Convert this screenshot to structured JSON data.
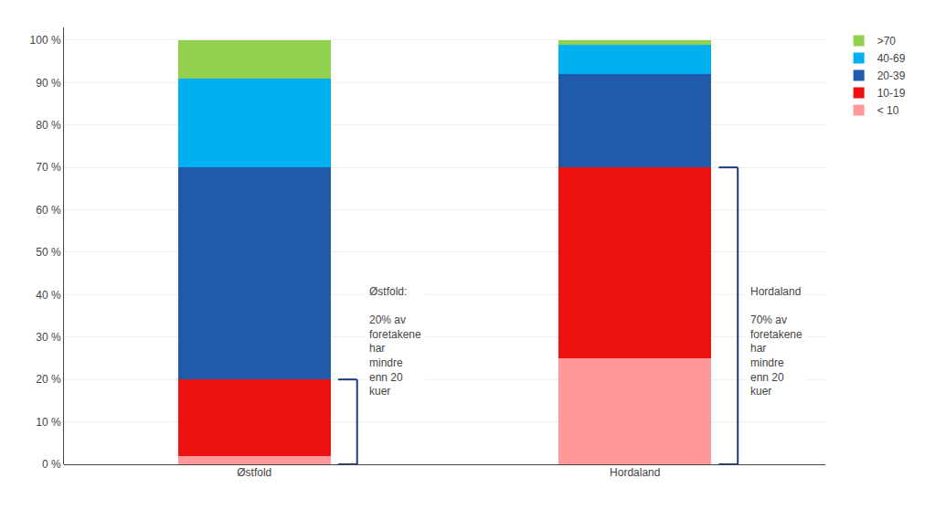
{
  "chart_data": {
    "type": "bar",
    "stacked": true,
    "grid": true,
    "categories": [
      "Østfold",
      "Hordaland"
    ],
    "series": [
      {
        "name": "< 10",
        "color": "#FF9999",
        "values": [
          2,
          25
        ]
      },
      {
        "name": "10-19",
        "color": "#EE1111",
        "values": [
          18,
          45
        ]
      },
      {
        "name": "20-39",
        "color": "#1F5BAA",
        "values": [
          50,
          22
        ]
      },
      {
        "name": "40-69",
        "color": "#00B0F0",
        "values": [
          21,
          7
        ]
      },
      {
        "name": ">70",
        "color": "#92D050",
        "values": [
          9,
          1
        ]
      }
    ],
    "ylim": [
      0,
      103
    ],
    "yticks": [
      {
        "value": 0,
        "label": "0 %"
      },
      {
        "value": 10,
        "label": "10 %"
      },
      {
        "value": 20,
        "label": "20 %"
      },
      {
        "value": 30,
        "label": "30 %"
      },
      {
        "value": 40,
        "label": "40 %"
      },
      {
        "value": 50,
        "label": "50 %"
      },
      {
        "value": 60,
        "label": "60 %"
      },
      {
        "value": 70,
        "label": "70 %"
      },
      {
        "value": 80,
        "label": "80 %"
      },
      {
        "value": 90,
        "label": "90 %"
      },
      {
        "value": 100,
        "label": "100 %"
      }
    ],
    "brackets": [
      {
        "from": 0,
        "to": 20
      },
      {
        "from": 0,
        "to": 70
      }
    ],
    "annotations": [
      "Østfold:\n\n20% av\nforetakene\nhar\nmindre\nenn 20\nkuer",
      "Hordaland\n\n70% av\nforetakene\nhar\nmindre\nenn 20\nkuer"
    ]
  }
}
